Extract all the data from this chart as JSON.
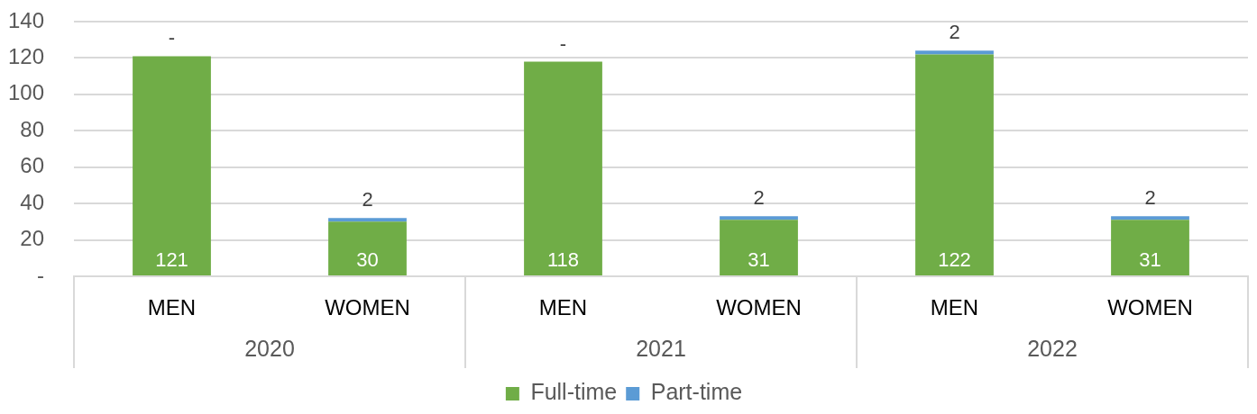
{
  "chart_data": {
    "type": "bar",
    "stacked": true,
    "categories": [
      "MEN",
      "WOMEN",
      "MEN",
      "WOMEN",
      "MEN",
      "WOMEN"
    ],
    "annotations": [
      "2020",
      "2021",
      "2022"
    ],
    "series": [
      {
        "name": "Full-time",
        "color": "#70ad47",
        "values": [
          121,
          30,
          118,
          31,
          122,
          31
        ],
        "value_labels": [
          "121",
          "30",
          "118",
          "31",
          "122",
          "31"
        ]
      },
      {
        "name": "Part-time",
        "color": "#5b9bd5",
        "values": [
          0,
          2,
          0,
          2,
          2,
          2
        ],
        "value_labels": [
          "-",
          "2",
          "-",
          "2",
          "2",
          "2"
        ]
      }
    ],
    "ylim": [
      0,
      140
    ],
    "yticks": [
      {
        "value": 0,
        "label": "-"
      },
      20,
      40,
      60,
      80,
      100,
      120,
      140
    ],
    "grid": "y",
    "legend": "bottom"
  }
}
